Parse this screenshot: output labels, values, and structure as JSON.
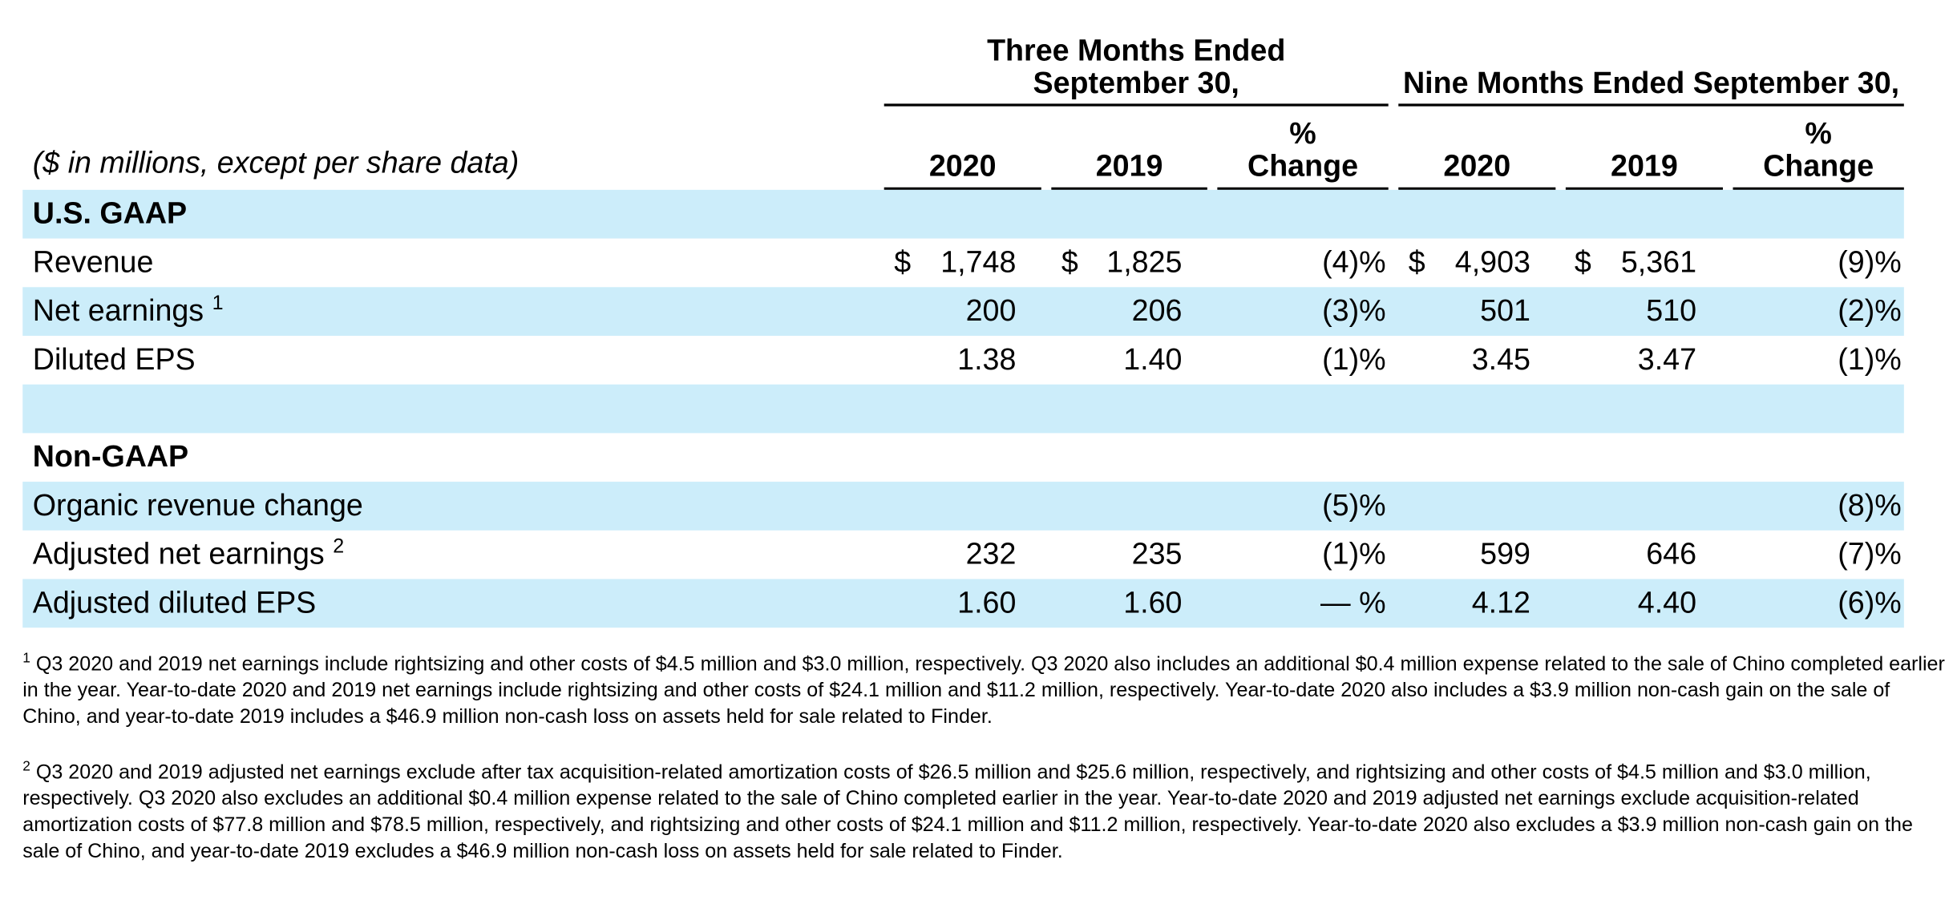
{
  "table": {
    "unit_note": "($ in millions, except per share data)",
    "group_headers": [
      "Three Months Ended September 30,",
      "Nine Months Ended September 30,"
    ],
    "column_headers": [
      "2020",
      "2019",
      "% Change",
      "2020",
      "2019",
      "% Change"
    ],
    "sections": [
      {
        "title": "U.S. GAAP",
        "rows": [
          {
            "label": "Revenue",
            "cells": [
              {
                "currency": "$",
                "amount": "1,748"
              },
              {
                "currency": "$",
                "amount": "1,825"
              },
              "(4)%",
              {
                "currency": "$",
                "amount": "4,903"
              },
              {
                "currency": "$",
                "amount": "5,361"
              },
              "(9)%"
            ]
          },
          {
            "label": "Net earnings",
            "note": "1",
            "cells": [
              "200",
              "206",
              "(3)%",
              "501",
              "510",
              "(2)%"
            ]
          },
          {
            "label": "Diluted EPS",
            "cells": [
              "1.38",
              "1.40",
              "(1)%",
              "3.45",
              "3.47",
              "(1)%"
            ]
          }
        ]
      },
      {
        "title": "Non-GAAP",
        "rows": [
          {
            "label": "Organic revenue change",
            "cells": [
              null,
              null,
              "(5)%",
              null,
              null,
              "(8)%"
            ]
          },
          {
            "label": "Adjusted net earnings",
            "note": "2",
            "cells": [
              "232",
              "235",
              "(1)%",
              "599",
              "646",
              "(7)%"
            ]
          },
          {
            "label": "Adjusted diluted EPS",
            "cells": [
              "1.60",
              "1.60",
              "— %",
              "4.12",
              "4.40",
              "(6)%"
            ]
          }
        ]
      }
    ]
  },
  "footnotes": [
    {
      "marker": "1",
      "text": "Q3 2020 and 2019 net earnings include rightsizing and other costs of $4.5 million and $3.0 million, respectively. Q3 2020 also includes an additional $0.4 million expense related to the sale of Chino completed earlier in the year. Year-to-date 2020 and 2019 net earnings include rightsizing and other costs of $24.1 million and $11.2 million, respectively. Year-to-date 2020 also includes a $3.9 million non-cash gain on the sale of Chino, and year-to-date 2019 includes a $46.9 million non-cash loss on assets held for sale related to Finder."
    },
    {
      "marker": "2",
      "text": "Q3 2020 and 2019 adjusted net earnings exclude after tax acquisition-related amortization costs of $26.5 million and $25.6 million, respectively, and rightsizing and other costs of $4.5 million and $3.0 million, respectively. Q3 2020 also excludes an additional $0.4 million expense related to the sale of Chino completed earlier in the year. Year-to-date 2020 and 2019 adjusted net earnings exclude acquisition-related amortization costs of $77.8 million and $78.5 million, respectively, and rightsizing and other costs of $24.1 million and $11.2 million, respectively. Year-to-date 2020 also excludes a $3.9 million non-cash gain on the sale of Chino, and year-to-date 2019 excludes a $46.9 million non-cash loss on assets held for sale related to Finder."
    }
  ]
}
